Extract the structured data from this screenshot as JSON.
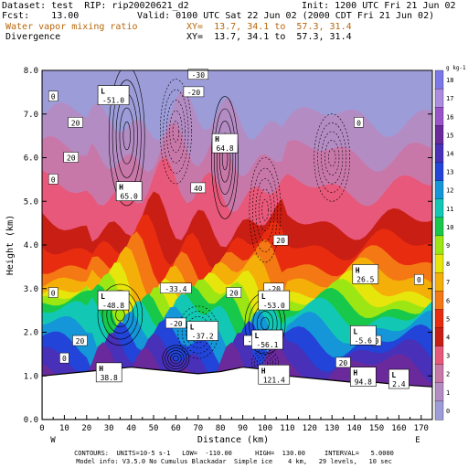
{
  "header": {
    "dataset": "Dataset: test  RIP: rip20020621_d2",
    "init": "Init: 1200 UTC Fri 21 Jun 02",
    "fcst": "Fcst:    13.00",
    "valid": "Valid: 0100 UTC Sat 22 Jun 02 (2000 CDT Fri 21 Jun 02)",
    "field1": "Water vapor mixing ratio",
    "xy1": "XY=  13.7, 34.1 to  57.3, 31.4",
    "field2": "Divergence",
    "xy2": "XY=  13.7, 34.1 to  57.3, 31.4"
  },
  "colors": {
    "band_colors": [
      "#7a78e8",
      "#ac8ce0",
      "#9a52c8",
      "#6a2a9c",
      "#4830b8",
      "#2244d8",
      "#1496d8",
      "#12c8b4",
      "#18c84a",
      "#9ce614",
      "#e6e60c",
      "#f4b008",
      "#f47814",
      "#e82c10",
      "#c81e14",
      "#e8587a",
      "#c878a8",
      "#b48cc4",
      "#9c9cd8"
    ],
    "terrain": "#ffffff"
  },
  "chart_data": {
    "type": "heatmap",
    "title": "",
    "xlabel": "Distance (km)",
    "ylabel": "Height (km)",
    "xlim": [
      0,
      175
    ],
    "ylim": [
      0,
      8
    ],
    "x_ticks": [
      "0",
      "10",
      "20",
      "30",
      "40",
      "50",
      "60",
      "70",
      "80",
      "90",
      "100",
      "110",
      "120",
      "130",
      "140",
      "150",
      "160",
      "170"
    ],
    "y_ticks": [
      "0.0",
      "1.0",
      "2.0",
      "3.0",
      "4.0",
      "5.0",
      "6.0",
      "7.0",
      "8.0"
    ],
    "west_label": "W",
    "east_label": "E",
    "colorbar": {
      "unit": "g kg-1",
      "labels": [
        "18",
        "17",
        "16",
        "15",
        "14",
        "13",
        "12",
        "11",
        "10",
        "9",
        "8",
        "7",
        "6",
        "5",
        "4",
        "3",
        "2",
        "1",
        "0"
      ]
    },
    "mixing_ratio_layers": [
      {
        "value": 1,
        "height": 6.9
      },
      {
        "value": 2,
        "height": 6.1
      },
      {
        "value": 3,
        "height": 5.3
      },
      {
        "value": 4,
        "height": 4.5
      },
      {
        "value": 5,
        "height": 4.0
      },
      {
        "value": 6,
        "height": 3.6
      },
      {
        "value": 7,
        "height": 3.3
      },
      {
        "value": 8,
        "height": 3.0
      },
      {
        "value": 9,
        "height": 2.8
      },
      {
        "value": 10,
        "height": 2.6
      },
      {
        "value": 11,
        "height": 2.4
      },
      {
        "value": 12,
        "height": 2.1
      },
      {
        "value": 13,
        "height": 1.8
      },
      {
        "value": 14,
        "height": 1.5
      },
      {
        "value": 15,
        "height": 1.2
      }
    ],
    "terrain": [
      [
        0,
        1.0
      ],
      [
        10,
        1.05
      ],
      [
        20,
        1.1
      ],
      [
        30,
        1.15
      ],
      [
        40,
        1.2
      ],
      [
        50,
        1.15
      ],
      [
        60,
        1.1
      ],
      [
        70,
        1.05
      ],
      [
        80,
        1.1
      ],
      [
        90,
        1.2
      ],
      [
        100,
        1.15
      ],
      [
        110,
        1.0
      ],
      [
        120,
        0.95
      ],
      [
        130,
        0.9
      ],
      [
        140,
        0.85
      ],
      [
        150,
        0.85
      ],
      [
        160,
        0.8
      ],
      [
        175,
        0.75
      ]
    ],
    "annotations": [
      {
        "type": "L",
        "value": "-51.0",
        "x": 32,
        "y": 7.4
      },
      {
        "type": "H",
        "value": "64.8",
        "x": 82,
        "y": 6.3
      },
      {
        "type": "H",
        "value": "65.0",
        "x": 39,
        "y": 5.2
      },
      {
        "type": "H",
        "value": "26.5",
        "x": 145,
        "y": 3.3
      },
      {
        "type": "L",
        "value": "-48.8",
        "x": 32,
        "y": 2.7
      },
      {
        "type": "L",
        "value": "-53.0",
        "x": 104,
        "y": 2.7
      },
      {
        "type": "L",
        "value": "-37.2",
        "x": 72,
        "y": 2.0
      },
      {
        "type": "L",
        "value": "-56.1",
        "x": 101,
        "y": 1.8
      },
      {
        "type": "L",
        "value": "-5.6",
        "x": 144,
        "y": 1.9
      },
      {
        "type": "H",
        "value": "38.8",
        "x": 30,
        "y": 1.05
      },
      {
        "type": "H",
        "value": "121.4",
        "x": 104,
        "y": 1.0
      },
      {
        "type": "H",
        "value": "94.8",
        "x": 144,
        "y": 0.95
      },
      {
        "type": "L",
        "value": "2.4",
        "x": 160,
        "y": 0.9
      }
    ],
    "contour_labels": [
      {
        "text": "0",
        "x": 5,
        "y": 7.4
      },
      {
        "text": "-20",
        "x": 68,
        "y": 7.5
      },
      {
        "text": "-30",
        "x": 70,
        "y": 7.9
      },
      {
        "text": "0",
        "x": 142,
        "y": 6.8
      },
      {
        "text": "20",
        "x": 15,
        "y": 6.8
      },
      {
        "text": "20",
        "x": 13,
        "y": 6.0
      },
      {
        "text": "0",
        "x": 5,
        "y": 5.5
      },
      {
        "text": "40",
        "x": 70,
        "y": 5.3
      },
      {
        "text": "20",
        "x": 107,
        "y": 4.1
      },
      {
        "text": "0",
        "x": 169,
        "y": 3.2
      },
      {
        "text": "-33.4",
        "x": 60,
        "y": 3.0
      },
      {
        "text": "20",
        "x": 86,
        "y": 2.9
      },
      {
        "text": "-20",
        "x": 104,
        "y": 3.0
      },
      {
        "text": "0",
        "x": 5,
        "y": 2.9
      },
      {
        "text": "-20",
        "x": 60,
        "y": 2.2
      },
      {
        "text": "20",
        "x": 17,
        "y": 1.8
      },
      {
        "text": "0",
        "x": 10,
        "y": 1.4
      },
      {
        "text": "-20",
        "x": 95,
        "y": 1.8
      },
      {
        "text": "0",
        "x": 150,
        "y": 1.8
      },
      {
        "text": "20",
        "x": 135,
        "y": 1.3
      }
    ]
  },
  "footer": {
    "line1": "CONTOURS:  UNITS=10-5 s-1   LOW=  -110.00      HIGH=  130.00     INTERVAL=   5.0000",
    "line2": "Model info: V3.5.0 No Cumulus Blackadar  Simple ice    4 km,   29 levels,   10 sec"
  }
}
